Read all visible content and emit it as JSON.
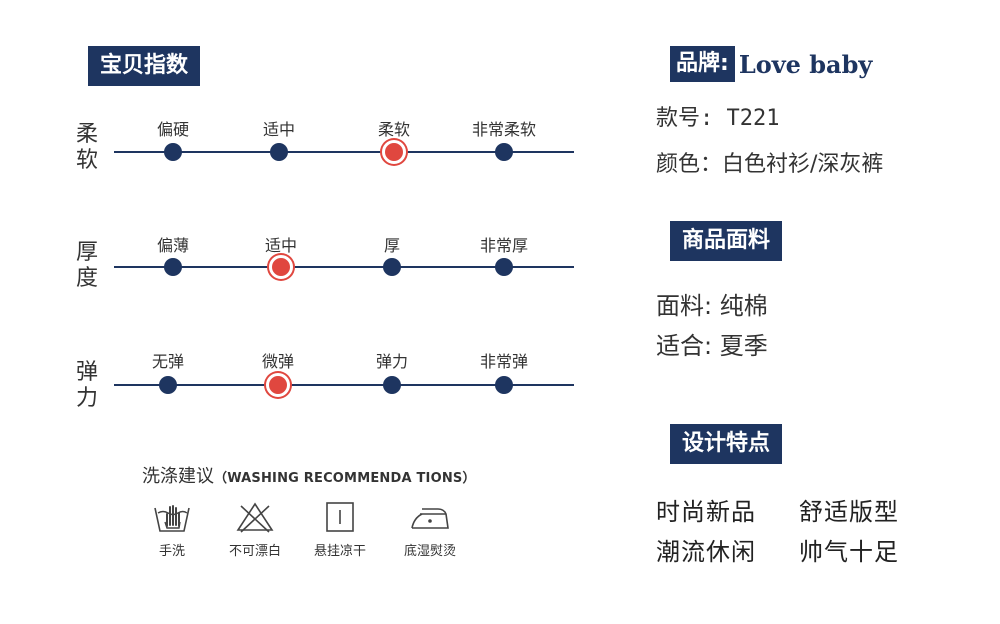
{
  "section_title": "宝贝指数",
  "scales": [
    {
      "label": "柔软",
      "options": [
        "偏硬",
        "适中",
        "柔软",
        "非常柔软"
      ],
      "selected_index": 2
    },
    {
      "label": "厚度",
      "options": [
        "偏薄",
        "适中",
        "厚",
        "非常厚"
      ],
      "selected_index": 1
    },
    {
      "label": "弹力",
      "options": [
        "无弹",
        "微弹",
        "弹力",
        "非常弹"
      ],
      "selected_index": 1
    }
  ],
  "washing": {
    "title": "洗涤建议",
    "subtitle": "（WASHING RECOMMENDA TIONS）",
    "items": [
      {
        "label": "手洗",
        "icon": "hand-wash-icon"
      },
      {
        "label": "不可漂白",
        "icon": "no-bleach-icon"
      },
      {
        "label": "悬挂凉干",
        "icon": "hang-dry-icon"
      },
      {
        "label": "底湿熨烫",
        "icon": "low-iron-icon"
      }
    ]
  },
  "brand": {
    "label": "品牌:",
    "value": "Love baby"
  },
  "style_no": "款号: T221",
  "color": "颜色：白色衬衫/深灰裤",
  "fabric_section": {
    "title": "商品面料",
    "material": "面料: 纯棉",
    "season": "适合: 夏季"
  },
  "design": {
    "title": "设计特点",
    "features": [
      "时尚新品",
      "舒适版型",
      "潮流休闲",
      "帅气十足"
    ]
  },
  "colors": {
    "navy": "#1e3560",
    "accent": "#e0473f"
  }
}
